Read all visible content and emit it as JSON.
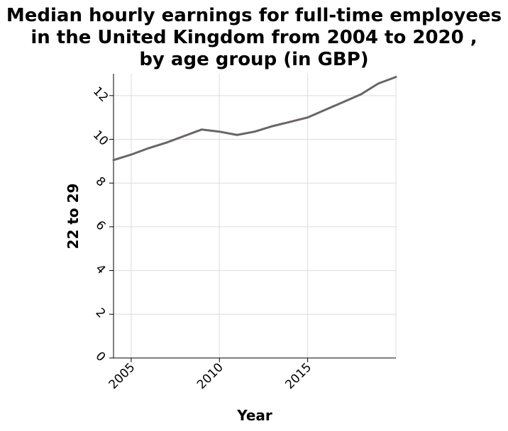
{
  "chart_data": {
    "type": "line",
    "title_lines": [
      "Median hourly earnings for full-time employees",
      "in the United Kingdom from 2004 to 2020 ,",
      "by age group (in GBP)"
    ],
    "xlabel": "Year",
    "ylabel": "22 to 29",
    "xlim": [
      2004,
      2020
    ],
    "ylim": [
      0,
      13
    ],
    "xticks": [
      2005,
      2010,
      2015
    ],
    "yticks": [
      0,
      2,
      4,
      6,
      8,
      10,
      12
    ],
    "grid": true,
    "colors": {
      "line": "#6b6466"
    },
    "series": [
      {
        "x": [
          2004,
          2005,
          2006,
          2007,
          2008,
          2009,
          2010,
          2011,
          2012,
          2013,
          2014,
          2015,
          2016,
          2017,
          2018,
          2019,
          2020
        ],
        "y": [
          9.05,
          9.3,
          9.6,
          9.85,
          10.15,
          10.45,
          10.35,
          10.2,
          10.35,
          10.6,
          10.8,
          11.0,
          11.35,
          11.7,
          12.05,
          12.55,
          12.85
        ]
      }
    ]
  }
}
